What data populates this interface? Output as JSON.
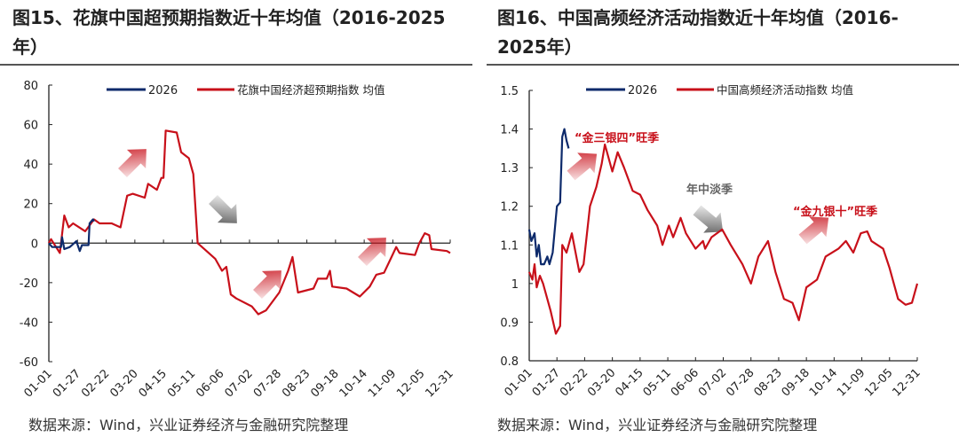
{
  "panels": [
    {
      "title": "图15、花旗中国超预期指数近十年均值（2016-2025年）",
      "source": "数据来源：Wind，兴业证券经济与金融研究院整理"
    },
    {
      "title": "图16、中国高频经济活动指数近十年均值（2016-2025年）",
      "source": "数据来源：Wind，兴业证券经济与金融研究院整理"
    }
  ],
  "chart_data": [
    {
      "type": "line",
      "title": "",
      "ylim": [
        -60,
        80
      ],
      "yticks": [
        -60,
        -40,
        -20,
        0,
        20,
        40,
        60,
        80
      ],
      "xticks": [
        "01-01",
        "01-27",
        "02-22",
        "03-20",
        "04-15",
        "05-11",
        "06-06",
        "07-02",
        "07-28",
        "08-23",
        "09-18",
        "10-14",
        "11-09",
        "12-05",
        "12-31"
      ],
      "legend_position": "top",
      "series": [
        {
          "name": "2026",
          "color": "#0d2a6b",
          "points": [
            [
              "01-01",
              0
            ],
            [
              "01-04",
              -2
            ],
            [
              "01-12",
              -2
            ],
            [
              "01-13",
              3
            ],
            [
              "01-15",
              -3
            ],
            [
              "01-20",
              -2
            ],
            [
              "01-26",
              1
            ],
            [
              "01-29",
              -4
            ],
            [
              "01-31",
              -1
            ],
            [
              "02-06",
              -1
            ],
            [
              "02-07",
              10
            ],
            [
              "02-10",
              12
            ],
            [
              "02-11",
              11
            ]
          ]
        },
        {
          "name": "花旗中国经济超预期指数 均值",
          "color": "#c8101a",
          "points": [
            [
              "01-01",
              0
            ],
            [
              "01-03",
              2
            ],
            [
              "01-11",
              -5
            ],
            [
              "01-15",
              14
            ],
            [
              "01-19",
              8
            ],
            [
              "01-23",
              10
            ],
            [
              "02-03",
              6
            ],
            [
              "02-11",
              12
            ],
            [
              "02-16",
              10
            ],
            [
              "02-27",
              10
            ],
            [
              "03-07",
              8
            ],
            [
              "03-13",
              24
            ],
            [
              "03-18",
              25
            ],
            [
              "03-29",
              23
            ],
            [
              "04-01",
              30
            ],
            [
              "04-09",
              27
            ],
            [
              "04-13",
              33
            ],
            [
              "04-15",
              33
            ],
            [
              "04-17",
              57
            ],
            [
              "04-27",
              56
            ],
            [
              "05-01",
              46
            ],
            [
              "05-08",
              43
            ],
            [
              "05-12",
              35
            ],
            [
              "05-16",
              0
            ],
            [
              "05-24",
              -4
            ],
            [
              "06-01",
              -8
            ],
            [
              "06-07",
              -14
            ],
            [
              "06-11",
              -12
            ],
            [
              "06-15",
              -26
            ],
            [
              "06-20",
              -28
            ],
            [
              "07-04",
              -32
            ],
            [
              "07-10",
              -36
            ],
            [
              "07-17",
              -34
            ],
            [
              "07-29",
              -25
            ],
            [
              "08-06",
              -14
            ],
            [
              "08-10",
              -7
            ],
            [
              "08-15",
              -25
            ],
            [
              "08-29",
              -23
            ],
            [
              "09-02",
              -18
            ],
            [
              "09-10",
              -18
            ],
            [
              "09-13",
              -14
            ],
            [
              "09-15",
              -22
            ],
            [
              "09-28",
              -23
            ],
            [
              "10-10",
              -27
            ],
            [
              "10-19",
              -22
            ],
            [
              "10-25",
              -16
            ],
            [
              "11-01",
              -15
            ],
            [
              "11-07",
              -8
            ],
            [
              "11-12",
              -2
            ],
            [
              "11-15",
              -5
            ],
            [
              "11-29",
              -6
            ],
            [
              "12-03",
              0
            ],
            [
              "12-08",
              5
            ],
            [
              "12-12",
              4
            ],
            [
              "12-14",
              -3
            ],
            [
              "12-28",
              -4
            ],
            [
              "12-31",
              -5
            ]
          ]
        }
      ],
      "annotations": []
    },
    {
      "type": "line",
      "title": "",
      "ylim": [
        0.8,
        1.5
      ],
      "yticks": [
        0.8,
        0.9,
        1,
        1.1,
        1.2,
        1.3,
        1.4,
        1.5
      ],
      "xticks": [
        "01-01",
        "01-27",
        "02-22",
        "03-20",
        "04-15",
        "05-11",
        "06-06",
        "07-02",
        "07-28",
        "08-23",
        "09-18",
        "10-14",
        "11-09",
        "12-05",
        "12-31"
      ],
      "legend_position": "top",
      "series": [
        {
          "name": "2026",
          "color": "#0d2a6b",
          "points": [
            [
              "01-01",
              1.14
            ],
            [
              "01-03",
              1.11
            ],
            [
              "01-06",
              1.13
            ],
            [
              "01-08",
              1.07
            ],
            [
              "01-10",
              1.1
            ],
            [
              "01-12",
              1.05
            ],
            [
              "01-15",
              1.05
            ],
            [
              "01-18",
              1.07
            ],
            [
              "01-20",
              1.05
            ],
            [
              "01-23",
              1.08
            ],
            [
              "01-27",
              1.2
            ],
            [
              "01-30",
              1.21
            ],
            [
              "02-01",
              1.38
            ],
            [
              "02-03",
              1.4
            ],
            [
              "02-05",
              1.37
            ],
            [
              "02-07",
              1.35
            ]
          ]
        },
        {
          "name": "中国高频经济活动指数 均值",
          "color": "#c8101a",
          "points": [
            [
              "01-01",
              1.03
            ],
            [
              "01-04",
              1.01
            ],
            [
              "01-06",
              1.05
            ],
            [
              "01-08",
              0.99
            ],
            [
              "01-11",
              1.02
            ],
            [
              "01-14",
              1.0
            ],
            [
              "01-21",
              0.93
            ],
            [
              "01-26",
              0.87
            ],
            [
              "01-30",
              0.89
            ],
            [
              "02-01",
              1.1
            ],
            [
              "02-05",
              1.08
            ],
            [
              "02-10",
              1.13
            ],
            [
              "02-17",
              1.03
            ],
            [
              "02-21",
              1.05
            ],
            [
              "02-27",
              1.2
            ],
            [
              "03-05",
              1.25
            ],
            [
              "03-10",
              1.31
            ],
            [
              "03-13",
              1.36
            ],
            [
              "03-20",
              1.29
            ],
            [
              "03-25",
              1.34
            ],
            [
              "03-31",
              1.3
            ],
            [
              "04-08",
              1.24
            ],
            [
              "04-15",
              1.23
            ],
            [
              "04-22",
              1.19
            ],
            [
              "05-01",
              1.15
            ],
            [
              "05-06",
              1.1
            ],
            [
              "05-12",
              1.15
            ],
            [
              "05-16",
              1.12
            ],
            [
              "05-23",
              1.17
            ],
            [
              "05-28",
              1.13
            ],
            [
              "06-06",
              1.09
            ],
            [
              "06-13",
              1.11
            ],
            [
              "06-15",
              1.09
            ],
            [
              "06-21",
              1.12
            ],
            [
              "07-01",
              1.14
            ],
            [
              "07-09",
              1.1
            ],
            [
              "07-20",
              1.05
            ],
            [
              "07-28",
              1.0
            ],
            [
              "08-04",
              1.07
            ],
            [
              "08-13",
              1.11
            ],
            [
              "08-20",
              1.03
            ],
            [
              "08-28",
              0.96
            ],
            [
              "09-05",
              0.95
            ],
            [
              "09-11",
              0.905
            ],
            [
              "09-18",
              0.99
            ],
            [
              "09-28",
              1.01
            ],
            [
              "10-06",
              1.07
            ],
            [
              "10-18",
              1.09
            ],
            [
              "10-25",
              1.11
            ],
            [
              "11-01",
              1.08
            ],
            [
              "11-08",
              1.13
            ],
            [
              "11-14",
              1.135
            ],
            [
              "11-18",
              1.11
            ],
            [
              "11-29",
              1.09
            ],
            [
              "12-05",
              1.04
            ],
            [
              "12-13",
              0.96
            ],
            [
              "12-20",
              0.945
            ],
            [
              "12-26",
              0.95
            ],
            [
              "12-31",
              1.0
            ]
          ]
        }
      ],
      "annotations": [
        {
          "text": "“金三银四”旺季",
          "color": "#c8101a"
        },
        {
          "text": "年中淡季",
          "color": "#666666"
        },
        {
          "text": "“金九银十”旺季",
          "color": "#c8101a"
        }
      ]
    }
  ]
}
